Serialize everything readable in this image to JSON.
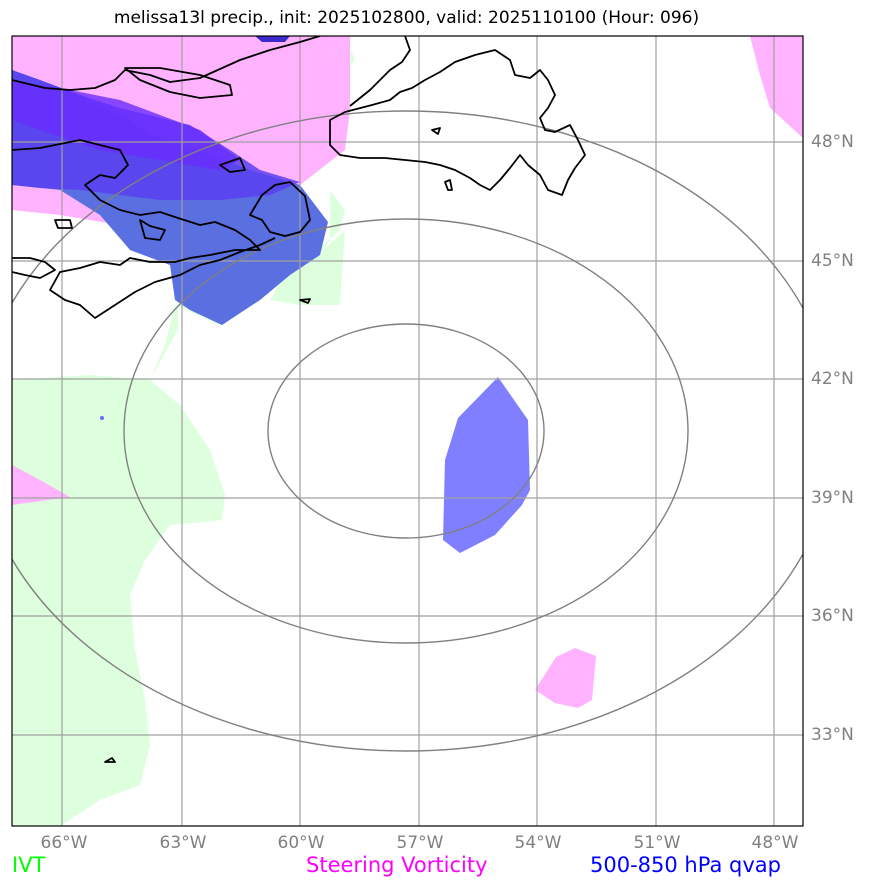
{
  "title": "melissa13l precip., init: 2025102800, valid: 2025110100 (Hour: 096)",
  "lat_labels": [
    "48°N",
    "45°N",
    "42°N",
    "39°N",
    "36°N",
    "33°N"
  ],
  "lon_labels": [
    "66°W",
    "63°W",
    "60°W",
    "57°W",
    "54°W",
    "51°W",
    "48°W"
  ],
  "legend": {
    "ivt": {
      "label": "IVT",
      "color": "#00ff00"
    },
    "vorticity": {
      "label": "Steering Vorticity",
      "color": "#ff00ff"
    },
    "qvap": {
      "label": "500-850 hPa qvap",
      "color": "#0000ff"
    }
  },
  "colors": {
    "ivt_fill": "#ddffdd",
    "vorticity_fill": "#ffb3ff",
    "qvap_fill": "#7f7fff",
    "qvap_dark": "#7a3cff",
    "gridline": "#a0a0a0",
    "range_ring": "#808080",
    "coastline": "#000000"
  }
}
